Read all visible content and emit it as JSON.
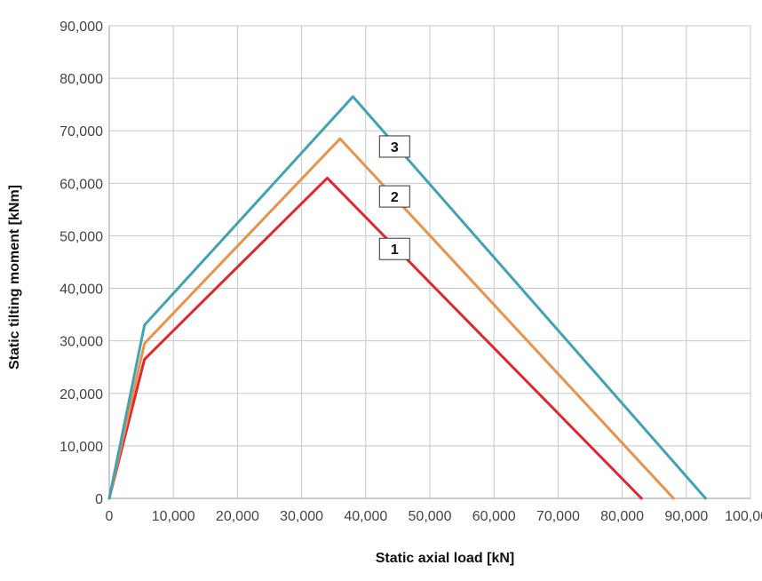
{
  "chart_data": {
    "type": "line",
    "xlabel": "Static axial load [kN]",
    "ylabel": "Static tilting moment [kNm]",
    "xlim": [
      0,
      100000
    ],
    "ylim": [
      0,
      90000
    ],
    "x_ticks": [
      0,
      10000,
      20000,
      30000,
      40000,
      50000,
      60000,
      70000,
      80000,
      90000,
      100000
    ],
    "y_ticks": [
      0,
      10000,
      20000,
      30000,
      40000,
      50000,
      60000,
      70000,
      80000,
      90000
    ],
    "x_tick_labels": [
      "0",
      "10,000",
      "20,000",
      "30,000",
      "40,000",
      "50,000",
      "60,000",
      "70,000",
      "80,000",
      "90,000",
      "100,000"
    ],
    "y_tick_labels": [
      "0",
      "10,000",
      "20,000",
      "30,000",
      "40,000",
      "50,000",
      "60,000",
      "70,000",
      "80,000",
      "90,000"
    ],
    "grid": true,
    "legend": "none",
    "series": [
      {
        "label": "1",
        "color": "#e3262d",
        "points": [
          [
            0,
            0
          ],
          [
            5500,
            26500
          ],
          [
            34000,
            61000
          ],
          [
            83000,
            0
          ]
        ],
        "label_position": [
          44500,
          47500
        ]
      },
      {
        "label": "2",
        "color": "#e8924a",
        "points": [
          [
            0,
            0
          ],
          [
            5500,
            29500
          ],
          [
            36000,
            68500
          ],
          [
            88000,
            0
          ]
        ],
        "label_position": [
          44500,
          57500
        ]
      },
      {
        "label": "3",
        "color": "#3fa3b4",
        "points": [
          [
            0,
            0
          ],
          [
            5500,
            33000
          ],
          [
            38000,
            76500
          ],
          [
            93000,
            0
          ]
        ],
        "label_position": [
          44500,
          67000
        ]
      }
    ]
  }
}
